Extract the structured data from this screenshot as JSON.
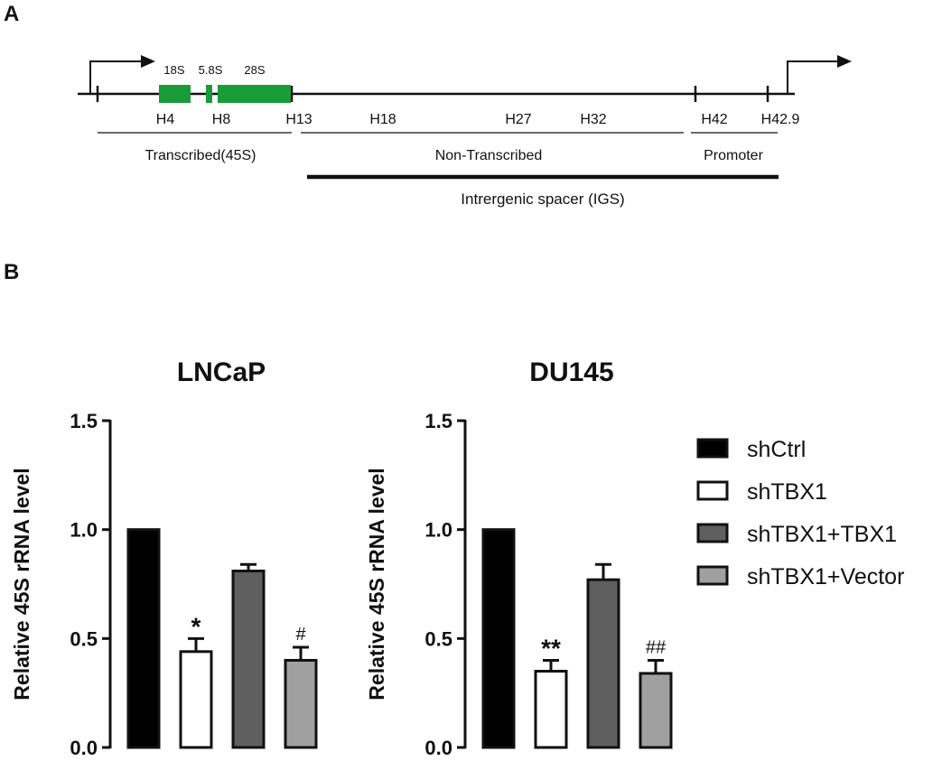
{
  "panels": {
    "a": "A",
    "b": "B"
  },
  "schematic": {
    "gene_labels": [
      "18S",
      "5.8S",
      "28S"
    ],
    "sites": [
      "H4",
      "H8",
      "H13",
      "H18",
      "H27",
      "H32",
      "H42",
      "H42.9"
    ],
    "regions": {
      "transcribed": "Transcribed(45S)",
      "non_transcribed": "Non-Transcribed",
      "promoter": "Promoter",
      "igs": "Intrergenic spacer (IGS)"
    },
    "gene_color": "#1a9b3a"
  },
  "legend": [
    {
      "name": "shCtrl",
      "color": "#000000"
    },
    {
      "name": "shTBX1",
      "color": "#ffffff"
    },
    {
      "name": "shTBX1+TBX1",
      "color": "#5f5f5f"
    },
    {
      "name": "shTBX1+Vector",
      "color": "#a0a0a0"
    }
  ],
  "chart_data": [
    {
      "type": "bar",
      "title": "LNCaP",
      "ylabel": "Relative  45S rRNA level",
      "ylim": [
        0,
        1.5
      ],
      "yticks": [
        "0.0",
        "0.5",
        "1.0",
        "1.5"
      ],
      "categories": [
        "shCtrl",
        "shTBX1",
        "shTBX1+TBX1",
        "shTBX1+Vector"
      ],
      "values": [
        1.0,
        0.44,
        0.81,
        0.4
      ],
      "errors": [
        0,
        0.06,
        0.03,
        0.06
      ],
      "annotations": [
        "",
        "*",
        "",
        "#"
      ]
    },
    {
      "type": "bar",
      "title": "DU145",
      "ylabel": "Relative  45S rRNA level",
      "ylim": [
        0,
        1.5
      ],
      "yticks": [
        "0.0",
        "0.5",
        "1.0",
        "1.5"
      ],
      "categories": [
        "shCtrl",
        "shTBX1",
        "shTBX1+TBX1",
        "shTBX1+Vector"
      ],
      "values": [
        1.0,
        0.35,
        0.77,
        0.34
      ],
      "errors": [
        0,
        0.05,
        0.07,
        0.06
      ],
      "annotations": [
        "",
        "**",
        "",
        "##"
      ]
    }
  ]
}
